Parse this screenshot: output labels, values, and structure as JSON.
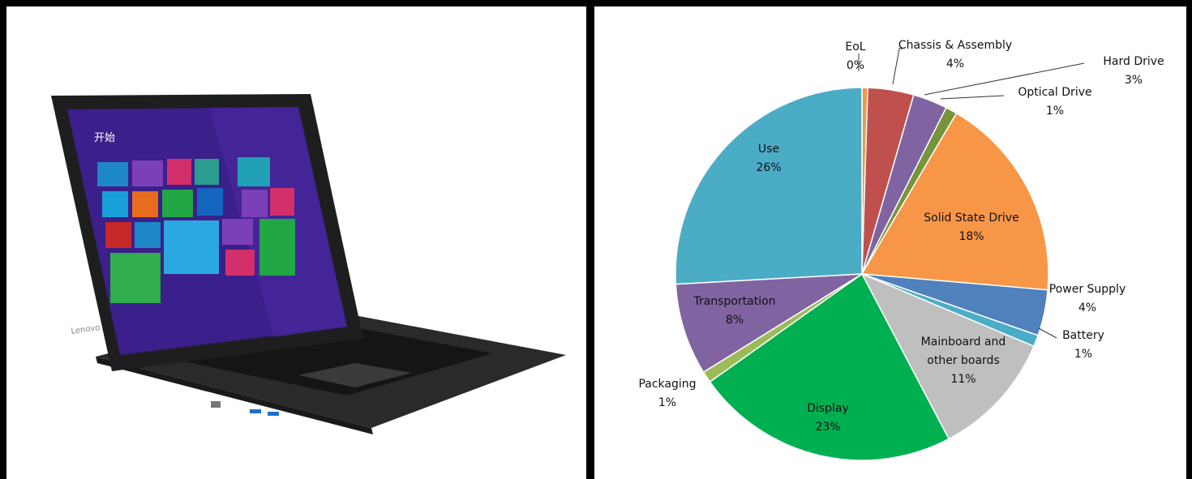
{
  "photo": {
    "start_label": "开始",
    "brand": "Lenovo"
  },
  "chart_data": {
    "type": "pie",
    "title": "",
    "slices": [
      {
        "label": "EoL",
        "pct": "0%",
        "value": 0.5,
        "color": "#F79646"
      },
      {
        "label": "Chassis & Assembly",
        "pct": "4%",
        "value": 4,
        "color": "#C0504D"
      },
      {
        "label": "Hard Drive",
        "pct": "3%",
        "value": 3,
        "color": "#8064A2"
      },
      {
        "label": "Optical Drive",
        "pct": "1%",
        "value": 1,
        "color": "#77933C"
      },
      {
        "label": "Solid State Drive",
        "pct": "18%",
        "value": 18,
        "color": "#F79646"
      },
      {
        "label": "Power Supply",
        "pct": "4%",
        "value": 4,
        "color": "#4F81BD"
      },
      {
        "label": "Battery",
        "pct": "1%",
        "value": 1,
        "color": "#4BACC6"
      },
      {
        "label": "Mainboard and other boards",
        "pct": "11%",
        "value": 11,
        "color": "#BFBFBF"
      },
      {
        "label": "Display",
        "pct": "23%",
        "value": 23,
        "color": "#00B050"
      },
      {
        "label": "Packaging",
        "pct": "1%",
        "value": 1,
        "color": "#9BBB59"
      },
      {
        "label": "Transportation",
        "pct": "8%",
        "value": 8,
        "color": "#8064A2"
      },
      {
        "label": "Use",
        "pct": "26%",
        "value": 26,
        "color": "#4BACC6"
      }
    ]
  }
}
